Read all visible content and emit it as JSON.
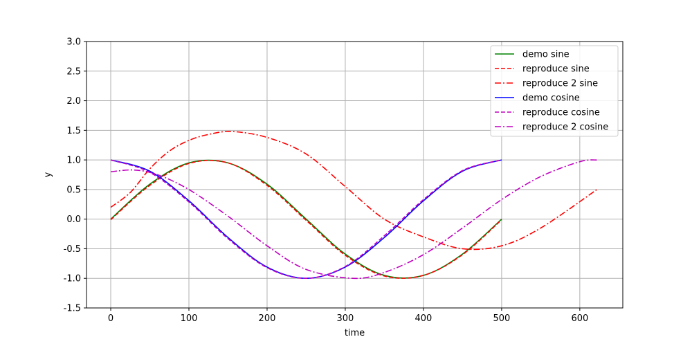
{
  "chart_data": {
    "type": "line",
    "title": "",
    "xlabel": "time",
    "ylabel": "y",
    "xlim": [
      -31,
      655
    ],
    "ylim": [
      -1.5,
      3.0
    ],
    "xticks": [
      0,
      100,
      200,
      300,
      400,
      500,
      600
    ],
    "yticks": [
      -1.5,
      -1.0,
      -0.5,
      0.0,
      0.5,
      1.0,
      1.5,
      2.0,
      2.5,
      3.0
    ],
    "grid": true,
    "legend_position": "upper-right",
    "series": [
      {
        "name": "demo sine",
        "color": "#008000",
        "style": "solid",
        "x": [
          0,
          50,
          100,
          150,
          200,
          250,
          300,
          350,
          400,
          450,
          500
        ],
        "y": [
          0.0,
          0.59,
          0.95,
          0.95,
          0.59,
          0.0,
          -0.59,
          -0.95,
          -0.95,
          -0.59,
          0.0
        ]
      },
      {
        "name": "reproduce sine",
        "color": "#ff0000",
        "style": "dashed",
        "x": [
          0,
          50,
          100,
          150,
          200,
          250,
          300,
          350,
          400,
          450,
          500
        ],
        "y": [
          -0.01,
          0.57,
          0.94,
          0.95,
          0.57,
          -0.02,
          -0.61,
          -0.96,
          -0.95,
          -0.6,
          -0.01
        ]
      },
      {
        "name": "reproduce 2 sine",
        "color": "#ff0000",
        "style": "dashdot",
        "x": [
          0,
          25,
          50,
          75,
          100,
          125,
          155,
          200,
          250,
          300,
          350,
          400,
          450,
          500,
          550,
          622
        ],
        "y": [
          0.2,
          0.45,
          0.85,
          1.15,
          1.33,
          1.43,
          1.48,
          1.38,
          1.1,
          0.55,
          0.0,
          -0.3,
          -0.5,
          -0.45,
          -0.15,
          0.5
        ]
      },
      {
        "name": "demo cosine",
        "color": "#0000ff",
        "style": "solid",
        "x": [
          0,
          50,
          100,
          150,
          200,
          250,
          300,
          350,
          400,
          450,
          500
        ],
        "y": [
          1.0,
          0.81,
          0.31,
          -0.31,
          -0.81,
          -1.0,
          -0.81,
          -0.31,
          0.31,
          0.81,
          1.0
        ]
      },
      {
        "name": "reproduce cosine",
        "color": "#c000c0",
        "style": "dashed",
        "x": [
          0,
          50,
          100,
          150,
          200,
          250,
          300,
          350,
          400,
          450,
          500
        ],
        "y": [
          1.0,
          0.79,
          0.29,
          -0.33,
          -0.82,
          -1.0,
          -0.8,
          -0.28,
          0.33,
          0.82,
          1.0
        ]
      },
      {
        "name": "reproduce 2 cosine",
        "color": "#c000c0",
        "style": "dashdot",
        "x": [
          0,
          30,
          60,
          100,
          150,
          200,
          250,
          310,
          350,
          400,
          450,
          500,
          550,
          600,
          622
        ],
        "y": [
          0.8,
          0.83,
          0.75,
          0.5,
          0.05,
          -0.45,
          -0.85,
          -1.0,
          -0.9,
          -0.6,
          -0.15,
          0.33,
          0.72,
          0.97,
          1.0
        ]
      }
    ]
  }
}
